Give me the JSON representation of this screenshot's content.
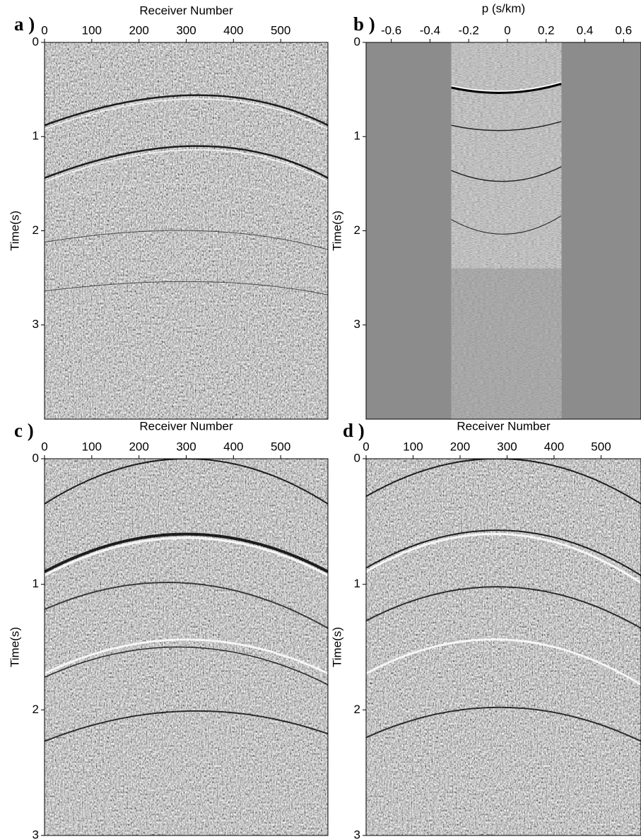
{
  "chart_data": [
    {
      "type": "image",
      "panel_label": "a )",
      "xlabel": "Receiver Number",
      "ylabel": "Time(s)",
      "xlim": [
        0,
        600
      ],
      "xticks": [
        0,
        100,
        200,
        300,
        400,
        500
      ],
      "ylim": [
        0,
        4
      ],
      "yticks": [
        0,
        1,
        2,
        3
      ],
      "y_inverted": true
    },
    {
      "type": "image",
      "panel_label": "b )",
      "xlabel": "p (s/km)",
      "ylabel": "Time(s)",
      "xlim": [
        -0.73,
        0.69
      ],
      "xticks": [
        -0.6,
        -0.4,
        -0.2,
        0,
        0.2,
        0.4,
        0.6
      ],
      "ylim": [
        0,
        4
      ],
      "yticks": [
        0,
        1,
        2,
        3
      ],
      "y_inverted": true
    },
    {
      "type": "image",
      "panel_label": "c )",
      "xlabel": "Receiver Number",
      "ylabel": "Time(s)",
      "xlim": [
        0,
        600
      ],
      "xticks": [
        0,
        100,
        200,
        300,
        400,
        500
      ],
      "ylim": [
        0,
        3
      ],
      "yticks": [
        0,
        1,
        2,
        3
      ],
      "y_inverted": true
    },
    {
      "type": "image",
      "panel_label": "d )",
      "xlabel": "Receiver Number",
      "ylabel": "Time(s)",
      "xlim": [
        0,
        585
      ],
      "xticks": [
        0,
        100,
        200,
        300,
        400,
        500
      ],
      "ylim": [
        0,
        3
      ],
      "yticks": [
        0,
        1,
        2,
        3
      ],
      "y_inverted": true
    }
  ]
}
